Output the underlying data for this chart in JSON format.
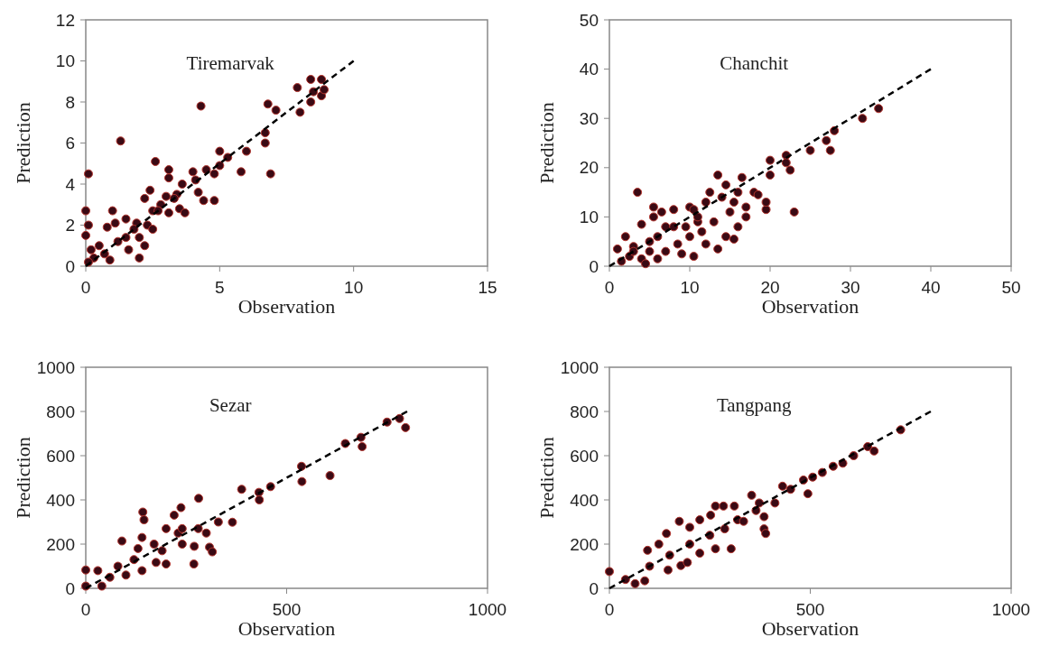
{
  "chart_data": [
    {
      "type": "scatter",
      "title": "Tiremarvak",
      "xlabel": "Observation",
      "ylabel": "Prediction",
      "xlim": [
        0,
        15
      ],
      "ylim": [
        0,
        12
      ],
      "xticks": [
        0,
        5,
        10,
        15
      ],
      "yticks": [
        0,
        2,
        4,
        6,
        8,
        10,
        12
      ],
      "series": [
        {
          "type": "scatter",
          "marker": "circle",
          "color": "#3a0a14",
          "x": [
            0.1,
            0,
            0.1,
            0,
            0.2,
            0.3,
            0.1,
            0.5,
            0.7,
            0.9,
            1.0,
            0.8,
            1.1,
            1.3,
            1.5,
            1.5,
            1.6,
            1.9,
            2.0,
            2.0,
            2.2,
            2.2,
            2.3,
            2.5,
            2.5,
            2.4,
            2.6,
            2.8,
            3.0,
            3.1,
            3.1,
            3.1,
            3.4,
            3.5,
            3.7,
            3.6,
            4.0,
            4.1,
            4.2,
            4.3,
            4.4,
            4.5,
            4.8,
            4.8,
            5.0,
            5.0,
            5.3,
            5.8,
            6.0,
            6.7,
            6.7,
            6.8,
            6.9,
            7.1,
            7.9,
            8.0,
            8.4,
            8.4,
            8.5,
            8.8,
            8.8,
            8.9,
            1.2,
            1.8,
            2.7,
            3.3
          ],
          "values": [
            4.5,
            2.7,
            2.0,
            1.5,
            0.8,
            0.4,
            0.2,
            1.0,
            0.6,
            0.3,
            2.7,
            1.9,
            2.1,
            6.1,
            2.3,
            1.4,
            0.8,
            2.1,
            1.4,
            0.4,
            1.0,
            3.3,
            2.0,
            1.8,
            2.7,
            3.7,
            5.1,
            3.0,
            3.4,
            2.6,
            4.3,
            4.7,
            3.5,
            2.8,
            2.6,
            4.0,
            4.6,
            4.2,
            3.6,
            7.8,
            3.2,
            4.7,
            3.2,
            4.5,
            5.6,
            4.9,
            5.3,
            4.6,
            5.6,
            6.0,
            6.5,
            7.9,
            4.5,
            7.6,
            8.7,
            7.5,
            9.1,
            8.0,
            8.5,
            9.1,
            8.3,
            8.6,
            1.2,
            1.8,
            2.7,
            3.3
          ]
        },
        {
          "type": "line",
          "color": "#000000",
          "line_style": "dashed",
          "x": [
            0,
            10
          ],
          "values": [
            0,
            10
          ]
        }
      ]
    },
    {
      "type": "scatter",
      "title": "Chanchit",
      "xlabel": "Observation",
      "ylabel": "Prediction",
      "xlim": [
        0,
        50
      ],
      "ylim": [
        0,
        50
      ],
      "xticks": [
        0,
        10,
        20,
        30,
        40,
        50
      ],
      "yticks": [
        0,
        10,
        20,
        30,
        40,
        50
      ],
      "series": [
        {
          "type": "scatter",
          "marker": "circle",
          "color": "#3a0a14",
          "x": [
            1,
            1.5,
            2,
            2.5,
            3,
            3.5,
            4,
            4,
            4.5,
            5,
            5.5,
            5.5,
            6,
            6,
            6.5,
            7,
            7,
            8,
            8.5,
            9,
            9.5,
            10,
            10,
            10.5,
            10.5,
            11,
            11.5,
            12,
            12,
            12.5,
            13,
            13.5,
            13.5,
            14,
            14.5,
            14.5,
            15,
            15.5,
            15.5,
            16,
            16,
            16.5,
            17,
            17,
            18,
            18.5,
            19.5,
            19.5,
            20,
            20,
            22,
            22,
            22.5,
            23,
            25,
            27,
            27.5,
            28,
            31.5,
            33.5,
            3,
            5,
            8,
            11
          ],
          "values": [
            3.5,
            1,
            6,
            2,
            4,
            15,
            8.5,
            1.5,
            0.5,
            3,
            10,
            12,
            6,
            1.5,
            11,
            8,
            3,
            11.5,
            4.5,
            2.5,
            8,
            12,
            6,
            11.5,
            2,
            9,
            7,
            13,
            4.5,
            15,
            9,
            18.5,
            3.5,
            14,
            16.5,
            6,
            11,
            5.5,
            13,
            15,
            8,
            18,
            12,
            10,
            15,
            14.5,
            11.5,
            13,
            21.5,
            18.5,
            22.5,
            21,
            19.5,
            11,
            23.5,
            25.5,
            23.5,
            27.5,
            30,
            32,
            3,
            5,
            8,
            10
          ]
        },
        {
          "type": "line",
          "color": "#000000",
          "line_style": "dashed",
          "x": [
            0,
            40
          ],
          "values": [
            0,
            40
          ]
        }
      ]
    },
    {
      "type": "scatter",
      "title": "Sezar",
      "xlabel": "Observation",
      "ylabel": "Prediction",
      "xlim": [
        0,
        1000
      ],
      "ylim": [
        0,
        1000
      ],
      "xticks": [
        0,
        500,
        1000
      ],
      "yticks": [
        0,
        200,
        400,
        600,
        800,
        1000
      ],
      "series": [
        {
          "type": "scatter",
          "marker": "circle",
          "color": "#3a0a14",
          "x": [
            0,
            0,
            30,
            40,
            60,
            80,
            90,
            100,
            120,
            130,
            140,
            140,
            142,
            145,
            175,
            170,
            200,
            190,
            200,
            220,
            237,
            230,
            240,
            240,
            269,
            280,
            270,
            300,
            281,
            308,
            315,
            330,
            365,
            388,
            431,
            432,
            460,
            537,
            538,
            608,
            646,
            685,
            688,
            750,
            781,
            796
          ],
          "values": [
            83,
            10,
            80,
            10,
            50,
            100,
            214,
            60,
            130,
            180,
            230,
            80,
            345,
            310,
            117,
            200,
            270,
            170,
            110,
            331,
            365,
            250,
            270,
            200,
            110,
            270,
            190,
            250,
            407,
            186,
            165,
            300,
            299,
            448,
            434,
            400,
            460,
            552,
            483,
            510,
            655,
            683,
            641,
            752,
            768,
            727
          ]
        },
        {
          "type": "line",
          "color": "#000000",
          "line_style": "dashed",
          "x": [
            0,
            800
          ],
          "values": [
            0,
            800
          ]
        }
      ]
    },
    {
      "type": "scatter",
      "title": "Tangpang",
      "xlabel": "Observation",
      "ylabel": "Prediction",
      "xlim": [
        0,
        1000
      ],
      "ylim": [
        0,
        1000
      ],
      "xticks": [
        0,
        500,
        1000
      ],
      "yticks": [
        0,
        200,
        400,
        600,
        800,
        1000
      ],
      "series": [
        {
          "type": "scatter",
          "marker": "circle",
          "color": "#3a0a14",
          "x": [
            0,
            64,
            88,
            95,
            142,
            146,
            123,
            178,
            194,
            174,
            200,
            225,
            225,
            252,
            264,
            264,
            284,
            287,
            303,
            311,
            319,
            334,
            354,
            365,
            373,
            385,
            385,
            389,
            412,
            431,
            451,
            483,
            494,
            506,
            530,
            557,
            581,
            608,
            643,
            659,
            725,
            100,
            150,
            200,
            250,
            40
          ],
          "values": [
            76,
            21,
            34,
            172,
            248,
            83,
            200,
            103,
            117,
            303,
            276,
            310,
            159,
            331,
            179,
            372,
            372,
            269,
            179,
            372,
            310,
            303,
            421,
            352,
            386,
            324,
            269,
            248,
            386,
            462,
            448,
            490,
            428,
            503,
            524,
            552,
            566,
            600,
            641,
            621,
            717,
            100,
            150,
            200,
            240,
            40
          ]
        },
        {
          "type": "line",
          "color": "#000000",
          "line_style": "dashed",
          "x": [
            0,
            800
          ],
          "values": [
            0,
            800
          ]
        }
      ]
    }
  ]
}
